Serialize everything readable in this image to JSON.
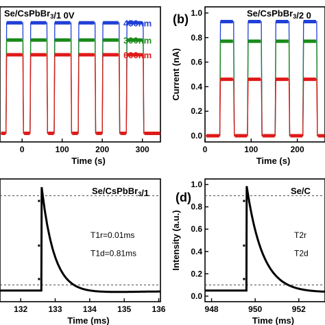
{
  "chart_data": [
    {
      "id": "a",
      "type": "line",
      "title": "Se/CsPbBr3/1  0V",
      "xlabel": "Time (s)",
      "ylabel": "",
      "xlim": [
        -55,
        345
      ],
      "ylim": [
        -0.05,
        1.05
      ],
      "xticks": [
        0,
        100,
        200,
        300
      ],
      "xticklabels": [
        "0",
        "100",
        "200",
        "300"
      ],
      "periods": [
        [
          -40,
          2
        ],
        [
          20,
          62
        ],
        [
          80,
          122
        ],
        [
          140,
          182
        ],
        [
          200,
          242
        ],
        [
          260,
          302
        ]
      ],
      "series": [
        {
          "name": "450nm",
          "color": "#1f3fd6",
          "on_value": 0.92,
          "off_value": 0.02
        },
        {
          "name": "300nm",
          "color": "#1a8a1a",
          "on_value": 0.78,
          "off_value": 0.02
        },
        {
          "name": "600nm",
          "color": "#e01a1a",
          "on_value": 0.66,
          "off_value": 0.02
        }
      ]
    },
    {
      "id": "b",
      "type": "line",
      "title": "Se/CsPbBr3/2  0",
      "panel_label": "(b)",
      "xlabel": "Time (s)",
      "ylabel": "Current (nA)",
      "xlim": [
        0,
        260
      ],
      "ylim": [
        -0.05,
        1.05
      ],
      "xticks": [
        0,
        100,
        200
      ],
      "xticklabels": [
        "0",
        "100",
        "200"
      ],
      "yticks": [
        0.0,
        0.2,
        0.4,
        0.6,
        0.8,
        1.0
      ],
      "yticklabels": [
        "0.0",
        "0.2",
        "0.4",
        "0.6",
        "0.8",
        "1.0"
      ],
      "periods": [
        [
          32,
          62
        ],
        [
          92,
          122
        ],
        [
          152,
          182
        ],
        [
          212,
          242
        ]
      ],
      "series": [
        {
          "name": "450nm",
          "color": "#1f3fd6",
          "on_value": 0.93,
          "off_value": 0.0
        },
        {
          "name": "300nm",
          "color": "#1a8a1a",
          "on_value": 0.77,
          "off_value": 0.0
        },
        {
          "name": "600nm",
          "color": "#e01a1a",
          "on_value": 0.46,
          "off_value": 0.0
        }
      ]
    },
    {
      "id": "c",
      "type": "line",
      "title": "Se/CsPbBr3/1",
      "xlabel": "Time (ms)",
      "ylabel": "",
      "xlim": [
        131.4,
        136.05
      ],
      "ylim": [
        -0.05,
        1.05
      ],
      "xticks": [
        132,
        133,
        134,
        135,
        136
      ],
      "xticklabels": [
        "132",
        "133",
        "134",
        "135",
        "136"
      ],
      "hlines": [
        0.9,
        0.1
      ],
      "annotations": [
        "T1r=0.01ms",
        "T1d=0.81ms"
      ],
      "rise_time": 132.6,
      "tau_decay": 0.37,
      "baseline": 0.05
    },
    {
      "id": "d",
      "type": "line",
      "title": "Se/C",
      "panel_label": "(d)",
      "xlabel": "Time (ms)",
      "ylabel": "Intensity (a.u.)",
      "xlim": [
        947.7,
        953.2
      ],
      "ylim": [
        -0.05,
        1.05
      ],
      "xticks": [
        948,
        950,
        952
      ],
      "xticklabels": [
        "948",
        "950",
        "952"
      ],
      "yticks": [
        0.0,
        0.2,
        0.4,
        0.6,
        0.8,
        1.0
      ],
      "yticklabels": [
        "0.0",
        "0.2",
        "0.4",
        "0.6",
        "0.8",
        "1.0"
      ],
      "hlines": [
        0.9,
        0.1
      ],
      "annotations": [
        "T2r",
        "T2d"
      ],
      "rise_time": 949.6,
      "tau_decay": 0.75,
      "baseline": 0.05
    }
  ]
}
